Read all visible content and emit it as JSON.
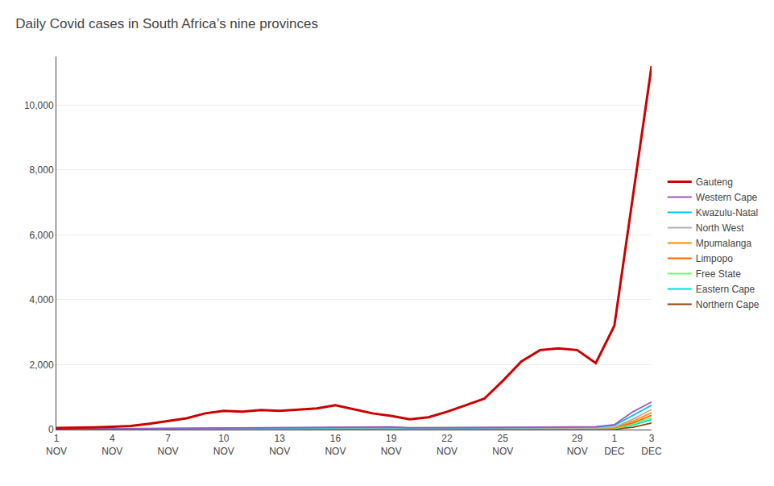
{
  "chart_data": {
    "type": "line",
    "title": "Daily Covid cases in South Africa’s nine provinces",
    "categories": [
      "1\nNOV",
      null,
      null,
      "4\nNOV",
      null,
      null,
      "7\nNOV",
      null,
      null,
      "10\nNOV",
      null,
      null,
      "13\nNOV",
      null,
      null,
      "16\nNOV",
      null,
      null,
      "19\nNOV",
      null,
      null,
      "22\nNOV",
      null,
      null,
      "25\nNOV",
      null,
      null,
      null,
      "29\nNOV",
      null,
      "1\nDEC",
      null,
      "3\nDEC"
    ],
    "series": [
      {
        "name": "Gauteng",
        "color": "#CC0000",
        "values": [
          50,
          55,
          70,
          90,
          110,
          180,
          260,
          350,
          500,
          580,
          550,
          600,
          580,
          620,
          650,
          750,
          620,
          500,
          420,
          320,
          380,
          550,
          750,
          950,
          1500,
          2100,
          2450,
          2500,
          2450,
          2050,
          3200,
          7200,
          11200
        ]
      },
      {
        "name": "Western Cape",
        "color": "#9B59B6",
        "values": [
          18,
          22,
          25,
          30,
          35,
          40,
          45,
          50,
          55,
          58,
          60,
          65,
          68,
          72,
          75,
          80,
          82,
          85,
          82,
          60,
          58,
          60,
          62,
          65,
          68,
          72,
          75,
          78,
          85,
          90,
          150,
          550,
          850
        ]
      },
      {
        "name": "Kwazulu-Natal",
        "color": "#00BFFF",
        "values": [
          15,
          18,
          20,
          25,
          28,
          32,
          36,
          40,
          44,
          48,
          50,
          54,
          56,
          58,
          60,
          62,
          64,
          66,
          64,
          48,
          46,
          50,
          52,
          54,
          58,
          62,
          66,
          70,
          74,
          78,
          130,
          450,
          750
        ]
      },
      {
        "name": "North West",
        "color": "#B0B0B0",
        "values": [
          10,
          13,
          15,
          18,
          20,
          22,
          24,
          26,
          28,
          30,
          31,
          33,
          34,
          36,
          37,
          38,
          39,
          40,
          39,
          29,
          28,
          30,
          31,
          32,
          34,
          36,
          38,
          40,
          42,
          44,
          72,
          320,
          620
        ]
      },
      {
        "name": "Mpumalanga",
        "color": "#FF8C00",
        "values": [
          8,
          10,
          12,
          14,
          16,
          18,
          20,
          22,
          24,
          26,
          27,
          29,
          30,
          31,
          32,
          33,
          34,
          35,
          34,
          25,
          24,
          26,
          27,
          28,
          30,
          32,
          34,
          36,
          38,
          40,
          65,
          260,
          520
        ]
      },
      {
        "name": "Limpopo",
        "color": "#FF6600",
        "values": [
          5,
          7,
          9,
          10,
          12,
          13,
          15,
          16,
          18,
          19,
          20,
          21,
          22,
          23,
          24,
          25,
          26,
          27,
          26,
          19,
          18,
          20,
          21,
          22,
          24,
          26,
          27,
          29,
          30,
          32,
          52,
          210,
          440
        ]
      },
      {
        "name": "Free State",
        "color": "#66FF66",
        "values": [
          5,
          6,
          8,
          9,
          10,
          11,
          12,
          13,
          14,
          15,
          16,
          17,
          17,
          18,
          18,
          19,
          19,
          20,
          19,
          14,
          14,
          15,
          16,
          16,
          17,
          18,
          19,
          20,
          21,
          22,
          36,
          170,
          370
        ]
      },
      {
        "name": "Eastern Cape",
        "color": "#00DDDD",
        "values": [
          4,
          5,
          6,
          7,
          8,
          9,
          10,
          11,
          12,
          13,
          13,
          14,
          15,
          15,
          16,
          16,
          17,
          17,
          16,
          12,
          12,
          13,
          13,
          14,
          15,
          16,
          17,
          18,
          19,
          20,
          32,
          140,
          310
        ]
      },
      {
        "name": "Northern Cape",
        "color": "#8B4513",
        "values": [
          2,
          3,
          3,
          4,
          4,
          5,
          5,
          6,
          6,
          7,
          7,
          7,
          8,
          8,
          8,
          9,
          9,
          9,
          9,
          6,
          6,
          7,
          7,
          7,
          8,
          8,
          9,
          9,
          9,
          10,
          16,
          70,
          200
        ]
      }
    ],
    "ylim": [
      0,
      11500
    ],
    "yticks": [
      0,
      {
        "value": 2000,
        "label": "2,000"
      },
      {
        "value": 4000,
        "label": "4,000"
      },
      {
        "value": 6000,
        "label": "6,000"
      },
      {
        "value": 8000,
        "label": "8,000"
      },
      {
        "value": 10000,
        "label": "10,000"
      }
    ],
    "grid": true,
    "legend": "right"
  }
}
